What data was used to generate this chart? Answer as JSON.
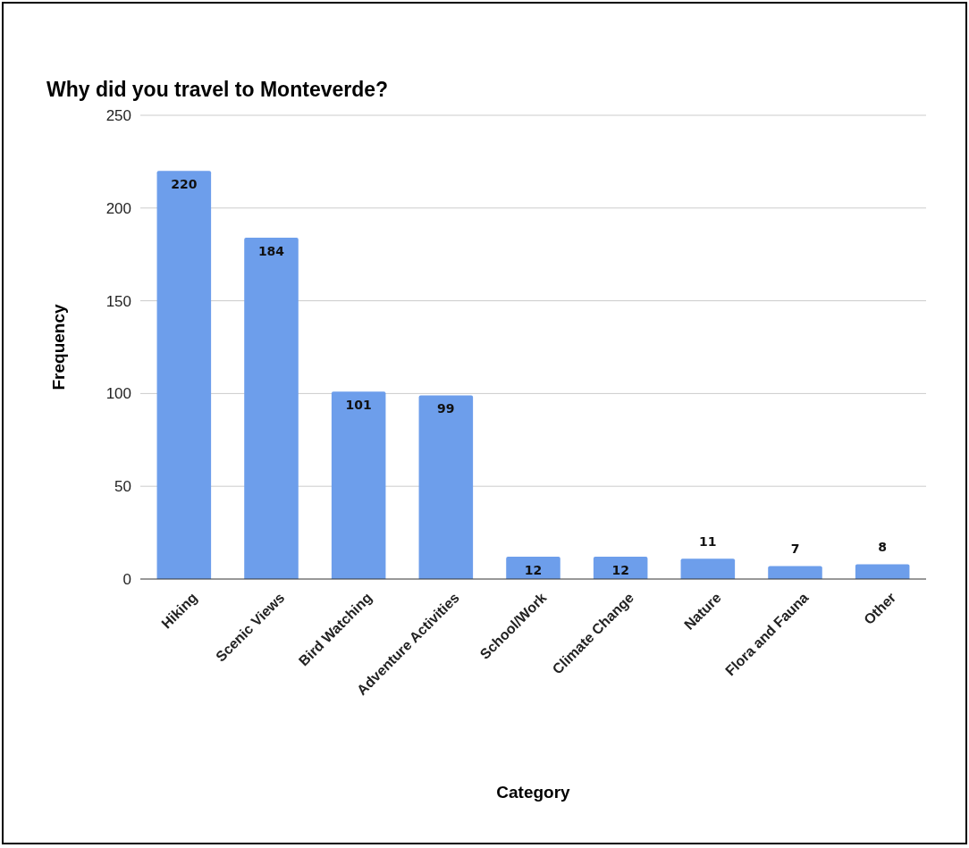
{
  "chart_data": {
    "type": "bar",
    "title": "Why did you travel to Monteverde?",
    "xlabel": "Category",
    "ylabel": "Frequency",
    "categories": [
      "Hiking",
      "Scenic Views",
      "Bird Watching",
      "Adventure Activities",
      "School/Work",
      "Climate Change",
      "Nature",
      "Flora and Fauna",
      "Other"
    ],
    "values": [
      220,
      184,
      101,
      99,
      12,
      12,
      11,
      7,
      8
    ],
    "color": "#6d9eeb",
    "ylim": [
      0,
      250
    ],
    "yticks": [
      0,
      50,
      100,
      150,
      200,
      250
    ],
    "grid": true,
    "data_labels": true
  }
}
